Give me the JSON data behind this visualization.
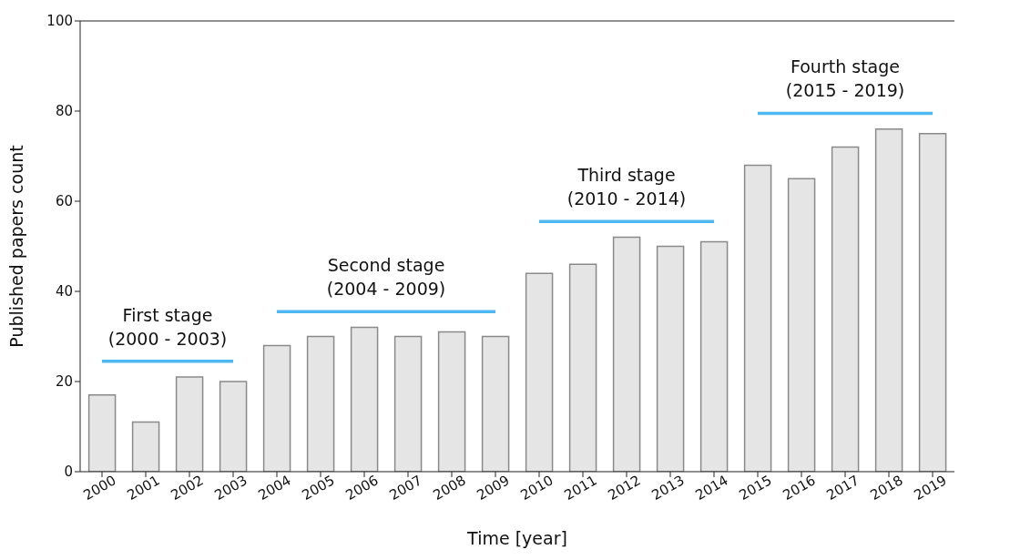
{
  "chart_data": {
    "type": "bar",
    "xlabel": "Time [year]",
    "ylabel": "Published papers count",
    "categories": [
      "2000",
      "2001",
      "2002",
      "2003",
      "2004",
      "2005",
      "2006",
      "2007",
      "2008",
      "2009",
      "2010",
      "2011",
      "2012",
      "2013",
      "2014",
      "2015",
      "2016",
      "2017",
      "2018",
      "2019"
    ],
    "series": [
      {
        "color": "#e5e5e5",
        "values": [
          17,
          11,
          21,
          20,
          28,
          30,
          32,
          30,
          31,
          30,
          44,
          46,
          52,
          50,
          51,
          68,
          65,
          72,
          76,
          75
        ]
      },
      {
        "type": "line",
        "color": "#4db8f2",
        "values": [
          24.5,
          24.5,
          24.5,
          24.5,
          null,
          null,
          null,
          null,
          null,
          null,
          null,
          null,
          null,
          null,
          null,
          null,
          null,
          null,
          null,
          null
        ]
      },
      {
        "type": "line",
        "color": "#4db8f2",
        "values": [
          null,
          null,
          null,
          null,
          35.5,
          35.5,
          35.5,
          35.5,
          35.5,
          35.5,
          null,
          null,
          null,
          null,
          null,
          null,
          null,
          null,
          null,
          null
        ]
      },
      {
        "type": "line",
        "color": "#4db8f2",
        "values": [
          null,
          null,
          null,
          null,
          null,
          null,
          null,
          null,
          null,
          null,
          55.5,
          55.5,
          55.5,
          55.5,
          55.5,
          null,
          null,
          null,
          null,
          null
        ]
      },
      {
        "type": "line",
        "color": "#4db8f2",
        "values": [
          null,
          null,
          null,
          null,
          null,
          null,
          null,
          null,
          null,
          null,
          null,
          null,
          null,
          null,
          null,
          79.5,
          79.5,
          79.5,
          79.5,
          79.5
        ]
      }
    ],
    "annotations": [
      "First stage\n(2000 - 2003)",
      "Second stage\n(2004 - 2009)",
      "Third stage\n(2010 - 2014)",
      "Fourth stage\n(2015 - 2019)"
    ],
    "ylim": [
      0,
      100
    ],
    "yticks": [
      0,
      20,
      40,
      60,
      80,
      100
    ],
    "grid": false,
    "marker": "none"
  }
}
